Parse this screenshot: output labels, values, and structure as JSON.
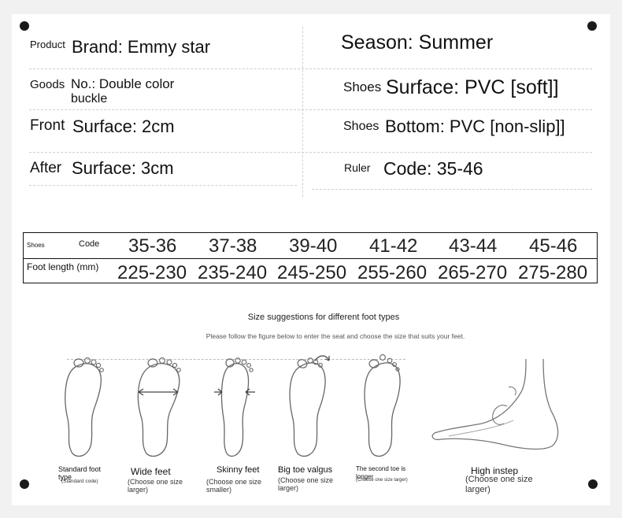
{
  "specs": {
    "left": [
      {
        "label": "Product",
        "value": "Brand: Emmy star"
      },
      {
        "label": "Goods",
        "value_line1": "No.: Double color",
        "value_line2": "buckle"
      },
      {
        "label": "Front",
        "value": "Surface: 2cm"
      },
      {
        "label": "After",
        "value": "Surface: 3cm"
      }
    ],
    "right": [
      {
        "label": "",
        "value": "Season: Summer"
      },
      {
        "label": "Shoes",
        "value": "Surface: PVC [soft]]"
      },
      {
        "label": "Shoes",
        "value": "Bottom: PVC [non-slip]]"
      },
      {
        "label": "Ruler",
        "value": "Code: 35-46"
      }
    ]
  },
  "size_table": {
    "row1_label_a": "Shoes",
    "row1_label_b": "Code",
    "codes": [
      "35-36",
      "37-38",
      "39-40",
      "41-42",
      "43-44",
      "45-46"
    ],
    "row2_label": "Foot length (mm)",
    "lengths": [
      "225-230",
      "235-240",
      "245-250",
      "255-260",
      "265-270",
      "275-280"
    ]
  },
  "guide": {
    "title": "Size suggestions for different foot types",
    "subtitle": "Please follow the figure below to enter the seat and choose the size that suits your feet.",
    "types": [
      {
        "name_line1": "Standard foot",
        "name_line2": "type",
        "note": "(Standard code)"
      },
      {
        "name_line1": "Wide feet",
        "note_line1": "(Choose one size",
        "note_line2": "larger)"
      },
      {
        "name_line1": "Skinny feet",
        "note_line1": "(Choose one size",
        "note_line2": "smaller)"
      },
      {
        "name_line1": "Big toe valgus",
        "note_line1": "(Choose one size",
        "note_line2": "larger)"
      },
      {
        "name_line1": "The second toe is",
        "name_line2": "longer",
        "note": "(Choose one size larger)"
      },
      {
        "name_line1": "High instep",
        "note_line1": "(Choose one size",
        "note_line2": "larger)"
      }
    ]
  }
}
